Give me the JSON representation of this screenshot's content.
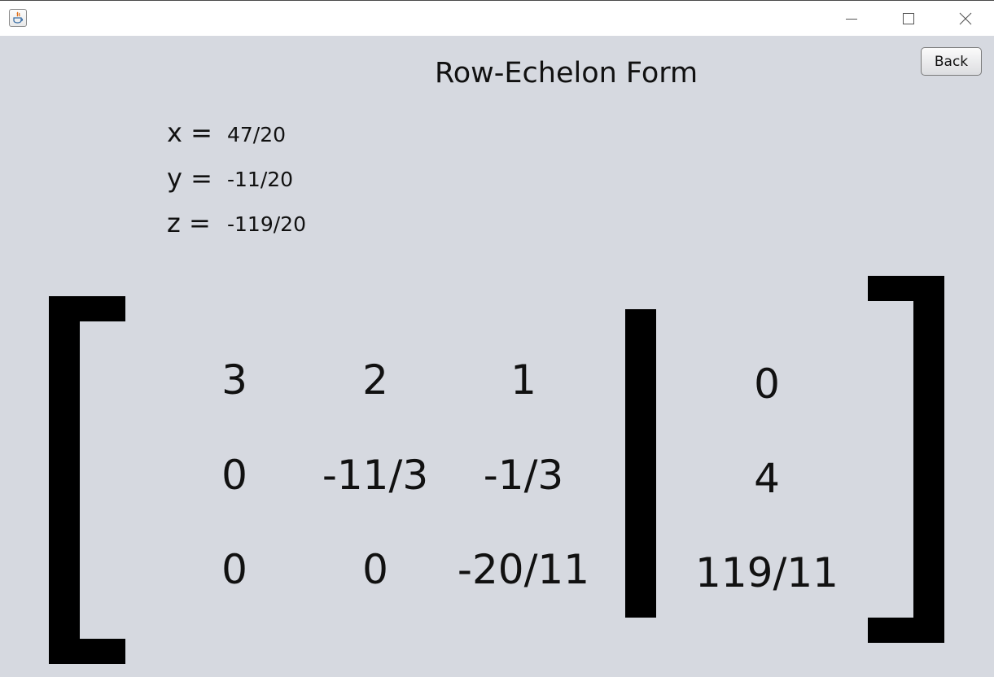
{
  "window": {
    "app_icon": "java-icon",
    "controls": [
      "minimize-icon",
      "maximize-icon",
      "close-icon"
    ]
  },
  "page": {
    "title": "Row-Echelon Form",
    "back_label": "Back"
  },
  "solution": {
    "x_label": "x =",
    "x_value": "47/20",
    "y_label": "y =",
    "y_value": "-11/20",
    "z_label": "z =",
    "z_value": "-119/20"
  },
  "matrix": {
    "rows": [
      [
        "3",
        "2",
        "1"
      ],
      [
        "0",
        "-11/3",
        "-1/3"
      ],
      [
        "0",
        "0",
        "-20/11"
      ]
    ],
    "constants": [
      "0",
      "4",
      "119/11"
    ]
  }
}
